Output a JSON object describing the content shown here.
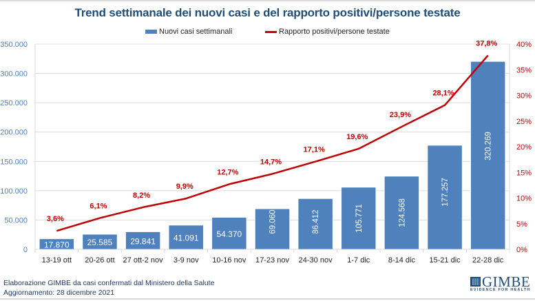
{
  "chart_data": {
    "type": "bar",
    "title": "Trend settimanale dei nuovi casi e del rapporto positivi/persone testate",
    "categories": [
      "13-19 ott",
      "20-26 ott",
      "27 ott-2 nov",
      "3-9 nov",
      "10-16 nov",
      "17-23 nov",
      "24-30 nov",
      "1-7 dic",
      "8-14 dic",
      "15-21 dic",
      "22-28 dic"
    ],
    "series": [
      {
        "name": "Nuovi casi settimanali",
        "type": "bar",
        "axis": "left",
        "color": "#4f81bd",
        "values": [
          17870,
          25585,
          29841,
          41091,
          54370,
          69060,
          86412,
          105771,
          124568,
          177257,
          320269
        ],
        "labels": [
          "17.870",
          "25.585",
          "29.841",
          "41.091",
          "54.370",
          "69.060",
          "86.412",
          "105.771",
          "124.568",
          "177.257",
          "320.269"
        ]
      },
      {
        "name": "Rapporto positivi/persone testate",
        "type": "line",
        "axis": "right",
        "color": "#c00000",
        "values": [
          3.6,
          6.1,
          8.2,
          9.9,
          12.7,
          14.7,
          17.1,
          19.6,
          23.9,
          28.1,
          37.8
        ],
        "labels": [
          "3,6%",
          "6,1%",
          "8,2%",
          "9,9%",
          "12,7%",
          "14,7%",
          "17,1%",
          "19,6%",
          "23,9%",
          "28,1%",
          "37,8%"
        ]
      }
    ],
    "y_left": {
      "min": 0,
      "max": 350000,
      "step": 50000,
      "tick_labels": [
        "0",
        "50.000",
        "100.000",
        "150.000",
        "200.000",
        "250.000",
        "300.000",
        "350.000"
      ],
      "color": "#4f81bd"
    },
    "y_right": {
      "min": 0,
      "max": 40,
      "step": 5,
      "tick_labels": [
        "0%",
        "5%",
        "10%",
        "15%",
        "20%",
        "25%",
        "30%",
        "35%",
        "40%"
      ],
      "color": "#c00000"
    },
    "xlabel": "",
    "ylabel": "",
    "grid": true,
    "legend_position": "top-center"
  },
  "footer": {
    "source": "Elaborazione GIMBE da casi confermati dal Ministero della Salute",
    "updated": "Aggiornamento: 28 dicembre 2021"
  },
  "logo": {
    "name": "GIMBE",
    "tagline": "EVIDENCE FOR HEALTH"
  }
}
